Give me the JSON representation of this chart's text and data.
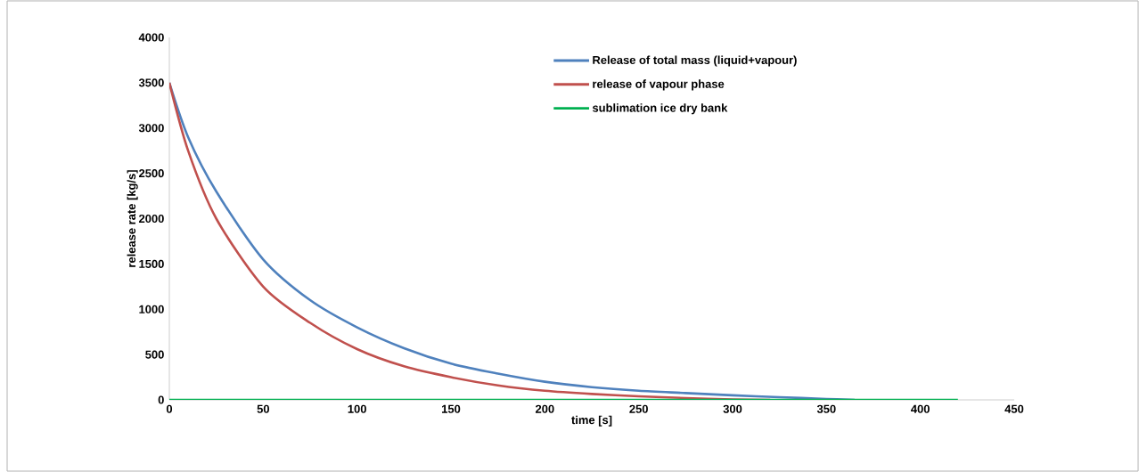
{
  "chart_data": {
    "type": "line",
    "xlabel": "time [s]",
    "ylabel": "release rate [kg/s]",
    "xlim": [
      0,
      450
    ],
    "ylim": [
      0,
      4000
    ],
    "xticks": [
      0,
      50,
      100,
      150,
      200,
      250,
      300,
      350,
      400,
      450
    ],
    "yticks": [
      0,
      500,
      1000,
      1500,
      2000,
      2500,
      3000,
      3500,
      4000
    ],
    "grid": false,
    "legend": "top right",
    "marker": "none",
    "line_style": "solid",
    "series": [
      {
        "name": "Release of total mass (liquid+vapour)",
        "color": "#4f81bd",
        "x": [
          0,
          10,
          25,
          50,
          75,
          100,
          125,
          150,
          175,
          200,
          225,
          250,
          275,
          300,
          325,
          350,
          365
        ],
        "values": [
          3500,
          2900,
          2300,
          1550,
          1100,
          800,
          570,
          400,
          290,
          200,
          140,
          100,
          75,
          50,
          30,
          10,
          0
        ]
      },
      {
        "name": "release of vapour phase",
        "color": "#c0504d",
        "x": [
          0,
          10,
          25,
          50,
          75,
          100,
          125,
          150,
          175,
          200,
          225,
          250,
          275,
          300,
          320
        ],
        "values": [
          3500,
          2750,
          2000,
          1250,
          850,
          560,
          370,
          250,
          160,
          100,
          65,
          40,
          20,
          5,
          0
        ]
      },
      {
        "name": "sublimation ice dry bank",
        "color": "#00b050",
        "x": [
          0,
          420
        ],
        "values": [
          0,
          0
        ]
      }
    ]
  }
}
